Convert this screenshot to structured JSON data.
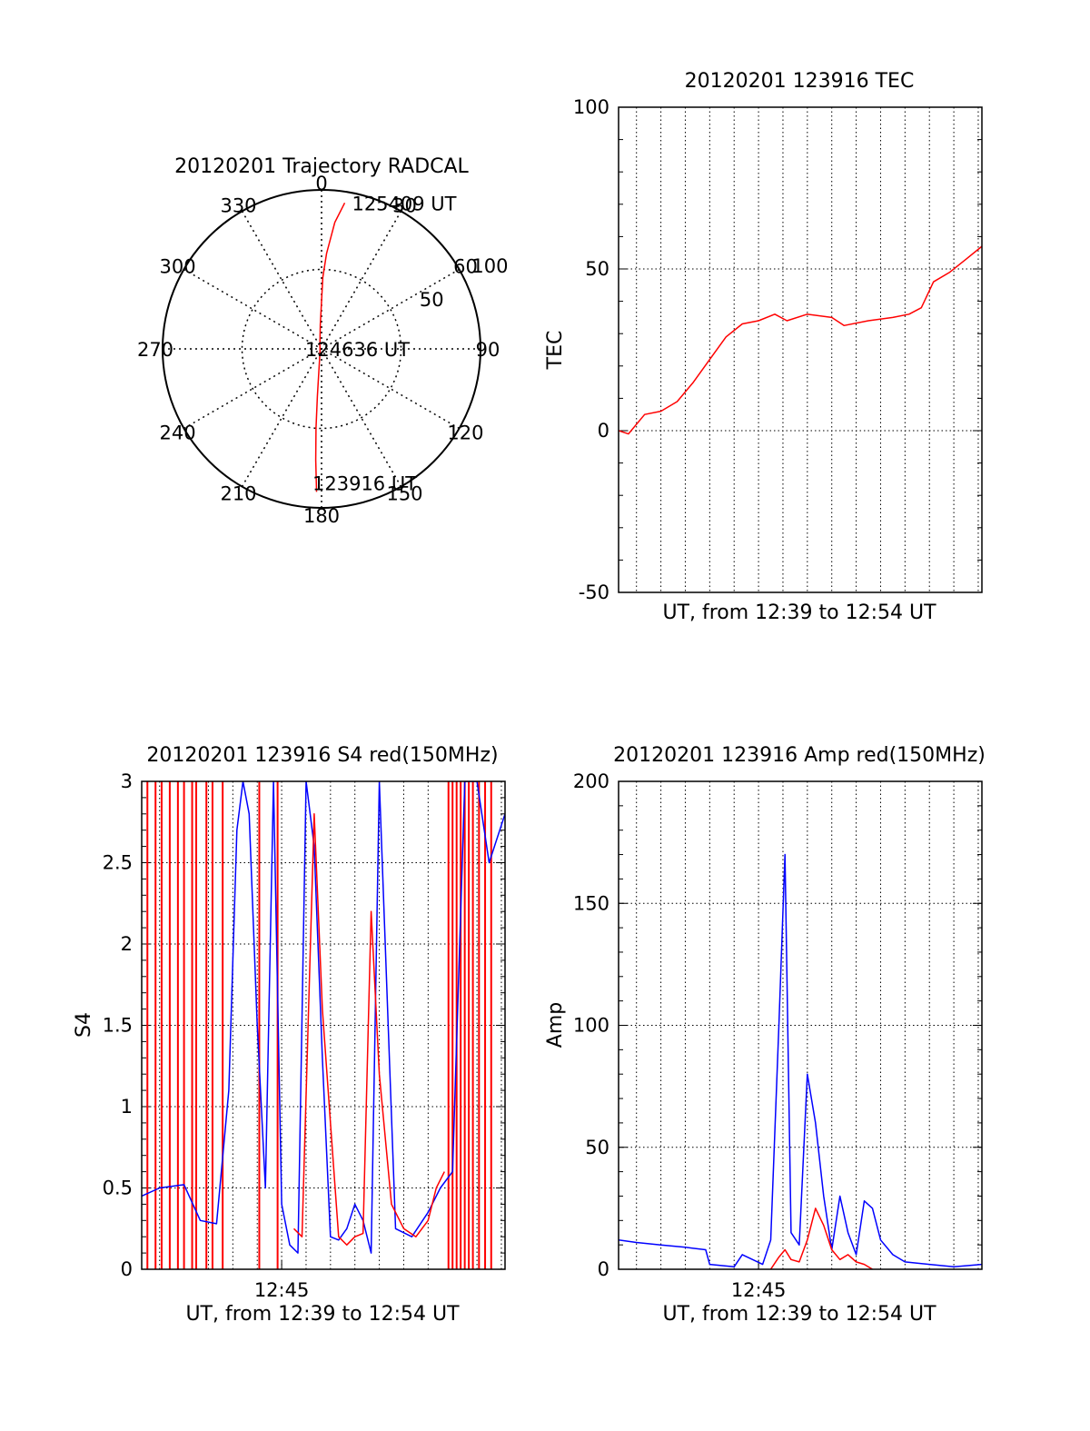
{
  "colors": {
    "red_series": "#ff0000",
    "blue_series": "#0000ff",
    "axis": "#000000"
  },
  "chart_data": [
    {
      "type": "polar",
      "title": "20120201 Trajectory RADCAL",
      "angle_labels": [
        "0",
        "30",
        "60",
        "90",
        "120",
        "150",
        "180",
        "210",
        "240",
        "270",
        "300",
        "330"
      ],
      "angle_values": [
        0,
        30,
        60,
        90,
        120,
        150,
        180,
        210,
        240,
        270,
        300,
        330
      ],
      "radial_labels": [
        "50",
        "100"
      ],
      "radial_values": [
        50,
        100
      ],
      "rmax": 100,
      "grid": true,
      "trajectory": {
        "color": "#ff0000",
        "points": [
          [
            9,
            93
          ],
          [
            6,
            80
          ],
          [
            3,
            60
          ],
          [
            1,
            45
          ],
          [
            0,
            30
          ],
          [
            -3,
            15
          ],
          [
            -20,
            3
          ],
          [
            -150,
            2
          ],
          [
            -175,
            30
          ],
          [
            -176,
            50
          ],
          [
            -177,
            70
          ],
          [
            -178,
            90
          ]
        ]
      },
      "annotations": [
        {
          "text": "125409 UT",
          "angle": 9,
          "r": 93
        },
        {
          "text": "124636 UT",
          "angle": 0,
          "r": 0
        },
        {
          "text": "123916 UT",
          "angle": 180,
          "r": 90
        }
      ]
    },
    {
      "type": "line",
      "title": "20120201 123916 TEC",
      "xlabel": "UT, from 12:39 to 12:54 UT",
      "ylabel": "TEC",
      "xlim": [
        "12:39:16",
        "12:54:09"
      ],
      "ylim": [
        -50,
        100
      ],
      "y_ticks": [
        "100",
        "50",
        "0",
        "-50"
      ],
      "y_tick_values": [
        100,
        50,
        0,
        -50
      ],
      "x_grid_minutes": [
        "12:40",
        "12:41",
        "12:42",
        "12:43",
        "12:44",
        "12:45",
        "12:46",
        "12:47",
        "12:48",
        "12:49",
        "12:50",
        "12:51",
        "12:52",
        "12:53",
        "12:54"
      ],
      "grid": true,
      "series": [
        {
          "color": "#ff0000",
          "x": [
            "12:39:16",
            "12:39:40",
            "12:40:20",
            "12:41:00",
            "12:41:40",
            "12:42:20",
            "12:43:00",
            "12:43:40",
            "12:44:20",
            "12:45:00",
            "12:45:40",
            "12:46:10",
            "12:47:00",
            "12:48:00",
            "12:48:30",
            "12:49:30",
            "12:50:30",
            "12:51:10",
            "12:51:40",
            "12:52:10",
            "12:52:50",
            "12:53:30",
            "12:54:09"
          ],
          "values": [
            0,
            -1,
            5,
            6,
            9,
            15,
            22,
            29,
            33,
            34,
            36,
            34,
            36,
            35,
            32.5,
            34,
            35,
            36,
            38,
            46,
            49,
            53,
            57
          ]
        }
      ]
    },
    {
      "type": "line",
      "title": "20120201 123916 S4 red(150MHz)",
      "xlabel": "UT, from 12:39 to 12:54 UT",
      "ylabel": "S4",
      "xlim": [
        "12:39:16",
        "12:54:09"
      ],
      "ylim": [
        0,
        3
      ],
      "x_ticks": [
        "12:45"
      ],
      "y_ticks": [
        "3",
        "2.5",
        "2",
        "1.5",
        "1",
        "0.5",
        "0"
      ],
      "y_tick_values": [
        3,
        2.5,
        2,
        1.5,
        1,
        0.5,
        0
      ],
      "grid": true,
      "series": [
        {
          "color": "#0000ff",
          "x": [
            "12:39:16",
            "12:40:00",
            "12:41:00",
            "12:41:40",
            "12:42:20",
            "12:42:50",
            "12:43:10",
            "12:43:25",
            "12:43:40",
            "12:44:00",
            "12:44:20",
            "12:44:40",
            "12:45:00",
            "12:45:20",
            "12:45:40",
            "12:46:00",
            "12:46:20",
            "12:46:40",
            "12:47:00",
            "12:47:20",
            "12:47:40",
            "12:48:00",
            "12:48:20",
            "12:48:40",
            "12:49:00",
            "12:49:40",
            "12:50:20",
            "12:51:00",
            "12:51:30",
            "12:52:00",
            "12:52:30",
            "12:53:00",
            "12:53:30",
            "12:54:09"
          ],
          "values": [
            0.45,
            0.5,
            0.52,
            0.3,
            0.28,
            1.1,
            2.7,
            3.0,
            2.8,
            1.5,
            0.5,
            3.0,
            0.4,
            0.15,
            0.1,
            3.0,
            2.6,
            1.3,
            0.2,
            0.18,
            0.25,
            0.4,
            0.3,
            0.1,
            3.0,
            0.25,
            0.2,
            0.35,
            0.5,
            0.6,
            3.0,
            3.0,
            2.5,
            2.8
          ]
        },
        {
          "color": "#ff0000",
          "x": [
            "12:45:30",
            "12:45:50",
            "12:46:20",
            "12:46:40",
            "12:47:00",
            "12:47:20",
            "12:47:40",
            "12:48:00",
            "12:48:20",
            "12:48:40",
            "12:49:00",
            "12:49:30",
            "12:50:00",
            "12:50:30",
            "12:51:00",
            "12:51:20",
            "12:51:40"
          ],
          "values": [
            0.25,
            0.2,
            2.8,
            1.6,
            0.9,
            0.2,
            0.15,
            0.2,
            0.22,
            2.2,
            1.2,
            0.4,
            0.25,
            0.2,
            0.3,
            0.5,
            0.6
          ]
        }
      ],
      "red_vertical_lines": [
        "12:39:30",
        "12:39:50",
        "12:40:05",
        "12:40:25",
        "12:40:45",
        "12:41:00",
        "12:41:20",
        "12:41:30",
        "12:41:55",
        "12:42:10",
        "12:42:35",
        "12:44:05",
        "12:44:50",
        "12:51:50",
        "12:52:00",
        "12:52:10",
        "12:52:20",
        "12:52:30",
        "12:52:40",
        "12:52:50",
        "12:53:05",
        "12:53:20",
        "12:53:35"
      ]
    },
    {
      "type": "line",
      "title": "20120201 123916 Amp red(150MHz)",
      "xlabel": "UT, from 12:39 to 12:54 UT",
      "ylabel": "Amp",
      "xlim": [
        "12:39:16",
        "12:54:09"
      ],
      "ylim": [
        0,
        200
      ],
      "x_ticks": [
        "12:45"
      ],
      "y_ticks": [
        "200",
        "150",
        "100",
        "50",
        "0"
      ],
      "y_tick_values": [
        200,
        150,
        100,
        50,
        0
      ],
      "grid": true,
      "series": [
        {
          "color": "#0000ff",
          "x": [
            "12:39:16",
            "12:40:00",
            "12:41:00",
            "12:42:00",
            "12:42:50",
            "12:43:00",
            "12:44:00",
            "12:44:20",
            "12:45:10",
            "12:45:30",
            "12:45:50",
            "12:46:05",
            "12:46:20",
            "12:46:40",
            "12:47:00",
            "12:47:20",
            "12:47:40",
            "12:48:00",
            "12:48:20",
            "12:48:40",
            "12:49:00",
            "12:49:20",
            "12:49:40",
            "12:50:00",
            "12:50:30",
            "12:51:00",
            "12:52:00",
            "12:53:00",
            "12:54:09"
          ],
          "values": [
            12,
            11,
            10,
            9,
            8,
            2,
            1,
            6,
            2,
            12,
            100,
            170,
            15,
            10,
            80,
            60,
            30,
            8,
            30,
            15,
            6,
            28,
            25,
            12,
            6,
            3,
            2,
            1,
            2
          ]
        },
        {
          "color": "#ff0000",
          "x": [
            "12:45:30",
            "12:45:50",
            "12:46:05",
            "12:46:20",
            "12:46:40",
            "12:47:00",
            "12:47:20",
            "12:47:40",
            "12:48:00",
            "12:48:20",
            "12:48:40",
            "12:49:00",
            "12:49:20",
            "12:49:40"
          ],
          "values": [
            0,
            5,
            8,
            4,
            3,
            12,
            25,
            18,
            8,
            4,
            6,
            3,
            2,
            0
          ]
        }
      ]
    }
  ]
}
